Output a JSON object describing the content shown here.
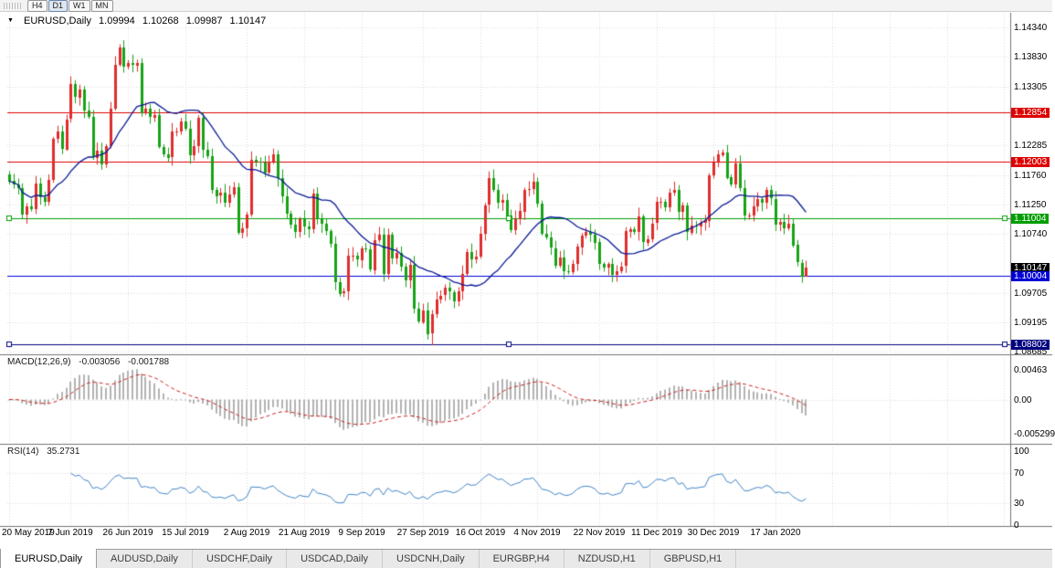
{
  "toolbar": {
    "timeframes": [
      "H4",
      "D1",
      "W1",
      "MN"
    ],
    "active_timeframe": "D1"
  },
  "chart_header": {
    "menu_icon": "▼",
    "symbol": "EURUSD,Daily",
    "open": "1.09994",
    "high": "1.10268",
    "low": "1.09987",
    "close": "1.10147"
  },
  "price_axis": {
    "plain_labels": [
      {
        "price": 1.1434,
        "text": "1.14340"
      },
      {
        "price": 1.1383,
        "text": "1.13830"
      },
      {
        "price": 1.13305,
        "text": "1.13305"
      },
      {
        "price": 1.12285,
        "text": "1.12285"
      },
      {
        "price": 1.1176,
        "text": "1.11760"
      },
      {
        "price": 1.1125,
        "text": "1.11250"
      },
      {
        "price": 1.1074,
        "text": "1.10740"
      },
      {
        "price": 1.09705,
        "text": "1.09705"
      },
      {
        "price": 1.09195,
        "text": "1.09195"
      },
      {
        "price": 1.08685,
        "text": "1.08685"
      }
    ],
    "line_labels": [
      {
        "price": 1.12854,
        "text": "1.12854",
        "bg": "#dd0000"
      },
      {
        "price": 1.12003,
        "text": "1.12003",
        "bg": "#dd0000"
      },
      {
        "price": 1.11004,
        "text": "1.11004",
        "bg": "#009d00"
      },
      {
        "price": 1.10147,
        "text": "1.10147",
        "bg": "#000000"
      },
      {
        "price": 1.10004,
        "text": "1.10004",
        "bg": "#0000d6"
      },
      {
        "price": 1.08802,
        "text": "1.08802",
        "bg": "#000080"
      }
    ]
  },
  "hlines": [
    {
      "price": 1.12854,
      "color": "#dd0000",
      "handles": false
    },
    {
      "price": 1.12003,
      "color": "#dd0000",
      "handles": false
    },
    {
      "price": 1.11004,
      "color": "#009d00",
      "handles": true
    },
    {
      "price": 1.10004,
      "color": "#0000d6",
      "handles": false
    },
    {
      "price": 1.08802,
      "color": "#000080",
      "handles": true
    }
  ],
  "macd_panel": {
    "label": "MACD(12,26,9)",
    "value1": "-0.003056",
    "value2": "-0.001788",
    "axis_labels": [
      {
        "value": 0.00463,
        "text": "0.00463"
      },
      {
        "value": 0,
        "text": "0.00"
      },
      {
        "value": -0.005299,
        "text": "-0.005299"
      }
    ]
  },
  "rsi_panel": {
    "label": "RSI(14)",
    "value": "35.2731",
    "levels": [
      70,
      30
    ],
    "axis_labels": [
      {
        "value": 100,
        "text": "100"
      },
      {
        "value": 70,
        "text": "70"
      },
      {
        "value": 30,
        "text": "30"
      },
      {
        "value": 0,
        "text": "0"
      }
    ]
  },
  "date_axis": {
    "ticks": [
      {
        "i": 0,
        "label": "20 May 2019"
      },
      {
        "i": 14,
        "label": "7 Jun 2019"
      },
      {
        "i": 27,
        "label": "26 Jun 2019"
      },
      {
        "i": 40,
        "label": "15 Jul 2019"
      },
      {
        "i": 54,
        "label": "2 Aug 2019"
      },
      {
        "i": 67,
        "label": "21 Aug 2019"
      },
      {
        "i": 80,
        "label": "9 Sep 2019"
      },
      {
        "i": 94,
        "label": "27 Sep 2019"
      },
      {
        "i": 107,
        "label": "16 Oct 2019"
      },
      {
        "i": 120,
        "label": "4 Nov 2019"
      },
      {
        "i": 134,
        "label": "22 Nov 2019"
      },
      {
        "i": 147,
        "label": "11 Dec 2019"
      },
      {
        "i": 160,
        "label": "30 Dec 2019"
      },
      {
        "i": 174,
        "label": "17 Jan 2020"
      }
    ],
    "unlabeled_tick_indices": [
      187,
      200,
      213,
      226
    ]
  },
  "tabs": [
    {
      "label": "EURUSD,Daily",
      "active": true
    },
    {
      "label": "AUDUSD,Daily",
      "active": false
    },
    {
      "label": "USDCHF,Daily",
      "active": false
    },
    {
      "label": "USDCAD,Daily",
      "active": false
    },
    {
      "label": "USDCNH,Daily",
      "active": false
    },
    {
      "label": "EURGBP,H4",
      "active": false
    },
    {
      "label": "NZDUSD,H1",
      "active": false
    },
    {
      "label": "GBPUSD,H1",
      "active": false
    }
  ],
  "chart_data": {
    "type": "candlestick",
    "title": "EURUSD,Daily",
    "symbol": "EURUSD",
    "timeframe": "Daily",
    "price_range": [
      1.0868,
      1.146
    ],
    "ma_period": 20,
    "macd_params": [
      12,
      26,
      9
    ],
    "rsi_period": 14,
    "last_candle": {
      "open": 1.09994,
      "high": 1.10268,
      "low": 1.09987,
      "close": 1.10147
    },
    "peak": {
      "index": 25,
      "high": 1.1404
    },
    "trough": {
      "index": 96,
      "low": 1.0879
    },
    "closes": [
      1.1166,
      1.116,
      1.1153,
      1.1107,
      1.1121,
      1.1117,
      1.1162,
      1.1138,
      1.113,
      1.1168,
      1.124,
      1.1252,
      1.1222,
      1.1274,
      1.1335,
      1.1312,
      1.1326,
      1.1289,
      1.1278,
      1.1207,
      1.1219,
      1.1195,
      1.1227,
      1.1293,
      1.1369,
      1.1399,
      1.1366,
      1.1372,
      1.1369,
      1.1373,
      1.1285,
      1.1293,
      1.1278,
      1.1282,
      1.1226,
      1.1213,
      1.1207,
      1.1252,
      1.1253,
      1.127,
      1.1258,
      1.1211,
      1.1227,
      1.1277,
      1.1221,
      1.121,
      1.1151,
      1.114,
      1.1145,
      1.1128,
      1.1143,
      1.1155,
      1.1076,
      1.1084,
      1.1108,
      1.1203,
      1.12,
      1.1199,
      1.1181,
      1.12,
      1.1213,
      1.1171,
      1.1139,
      1.1109,
      1.109,
      1.1077,
      1.1099,
      1.1086,
      1.1081,
      1.1144,
      1.1101,
      1.1091,
      1.1079,
      1.1057,
      1.099,
      1.097,
      1.0973,
      1.1035,
      1.1035,
      1.1028,
      1.1048,
      1.1046,
      1.1011,
      1.1063,
      1.1073,
      1.1004,
      1.1072,
      1.1031,
      1.1041,
      1.1017,
      1.0993,
      1.102,
      1.0943,
      1.092,
      1.094,
      1.0899,
      1.0933,
      1.0959,
      1.0966,
      1.0979,
      1.0972,
      1.0956,
      1.0973,
      1.1004,
      1.1042,
      1.1029,
      1.1034,
      1.1074,
      1.1124,
      1.1171,
      1.115,
      1.1128,
      1.1133,
      1.1105,
      1.108,
      1.1099,
      1.1113,
      1.1151,
      1.1152,
      1.1165,
      1.1127,
      1.1074,
      1.1067,
      1.1049,
      1.1018,
      1.1033,
      1.1009,
      1.1007,
      1.1021,
      1.1051,
      1.1071,
      1.1077,
      1.1073,
      1.1059,
      1.1021,
      1.1014,
      1.1021,
      1.1002,
      1.1009,
      1.1017,
      1.1078,
      1.1082,
      1.1077,
      1.1104,
      1.1059,
      1.1065,
      1.1092,
      1.1129,
      1.113,
      1.112,
      1.1145,
      1.115,
      1.1112,
      1.1123,
      1.1077,
      1.1089,
      1.1087,
      1.1093,
      1.1097,
      1.1176,
      1.1199,
      1.1212,
      1.1216,
      1.1172,
      1.116,
      1.1196,
      1.1153,
      1.1105,
      1.1106,
      1.1122,
      1.1134,
      1.1128,
      1.115,
      1.1135,
      1.109,
      1.1095,
      1.1084,
      1.1092,
      1.1054,
      1.1023,
      1.09994,
      1.10147
    ],
    "colors": {
      "up": "#df2d2d",
      "down": "#16a216",
      "ma": "#0a1a96",
      "macd_hist": "#b2b2b2",
      "macd_signal": "#cc2020",
      "rsi": "#3f83c6",
      "grid": "#dadada",
      "separator": "#737373"
    }
  }
}
